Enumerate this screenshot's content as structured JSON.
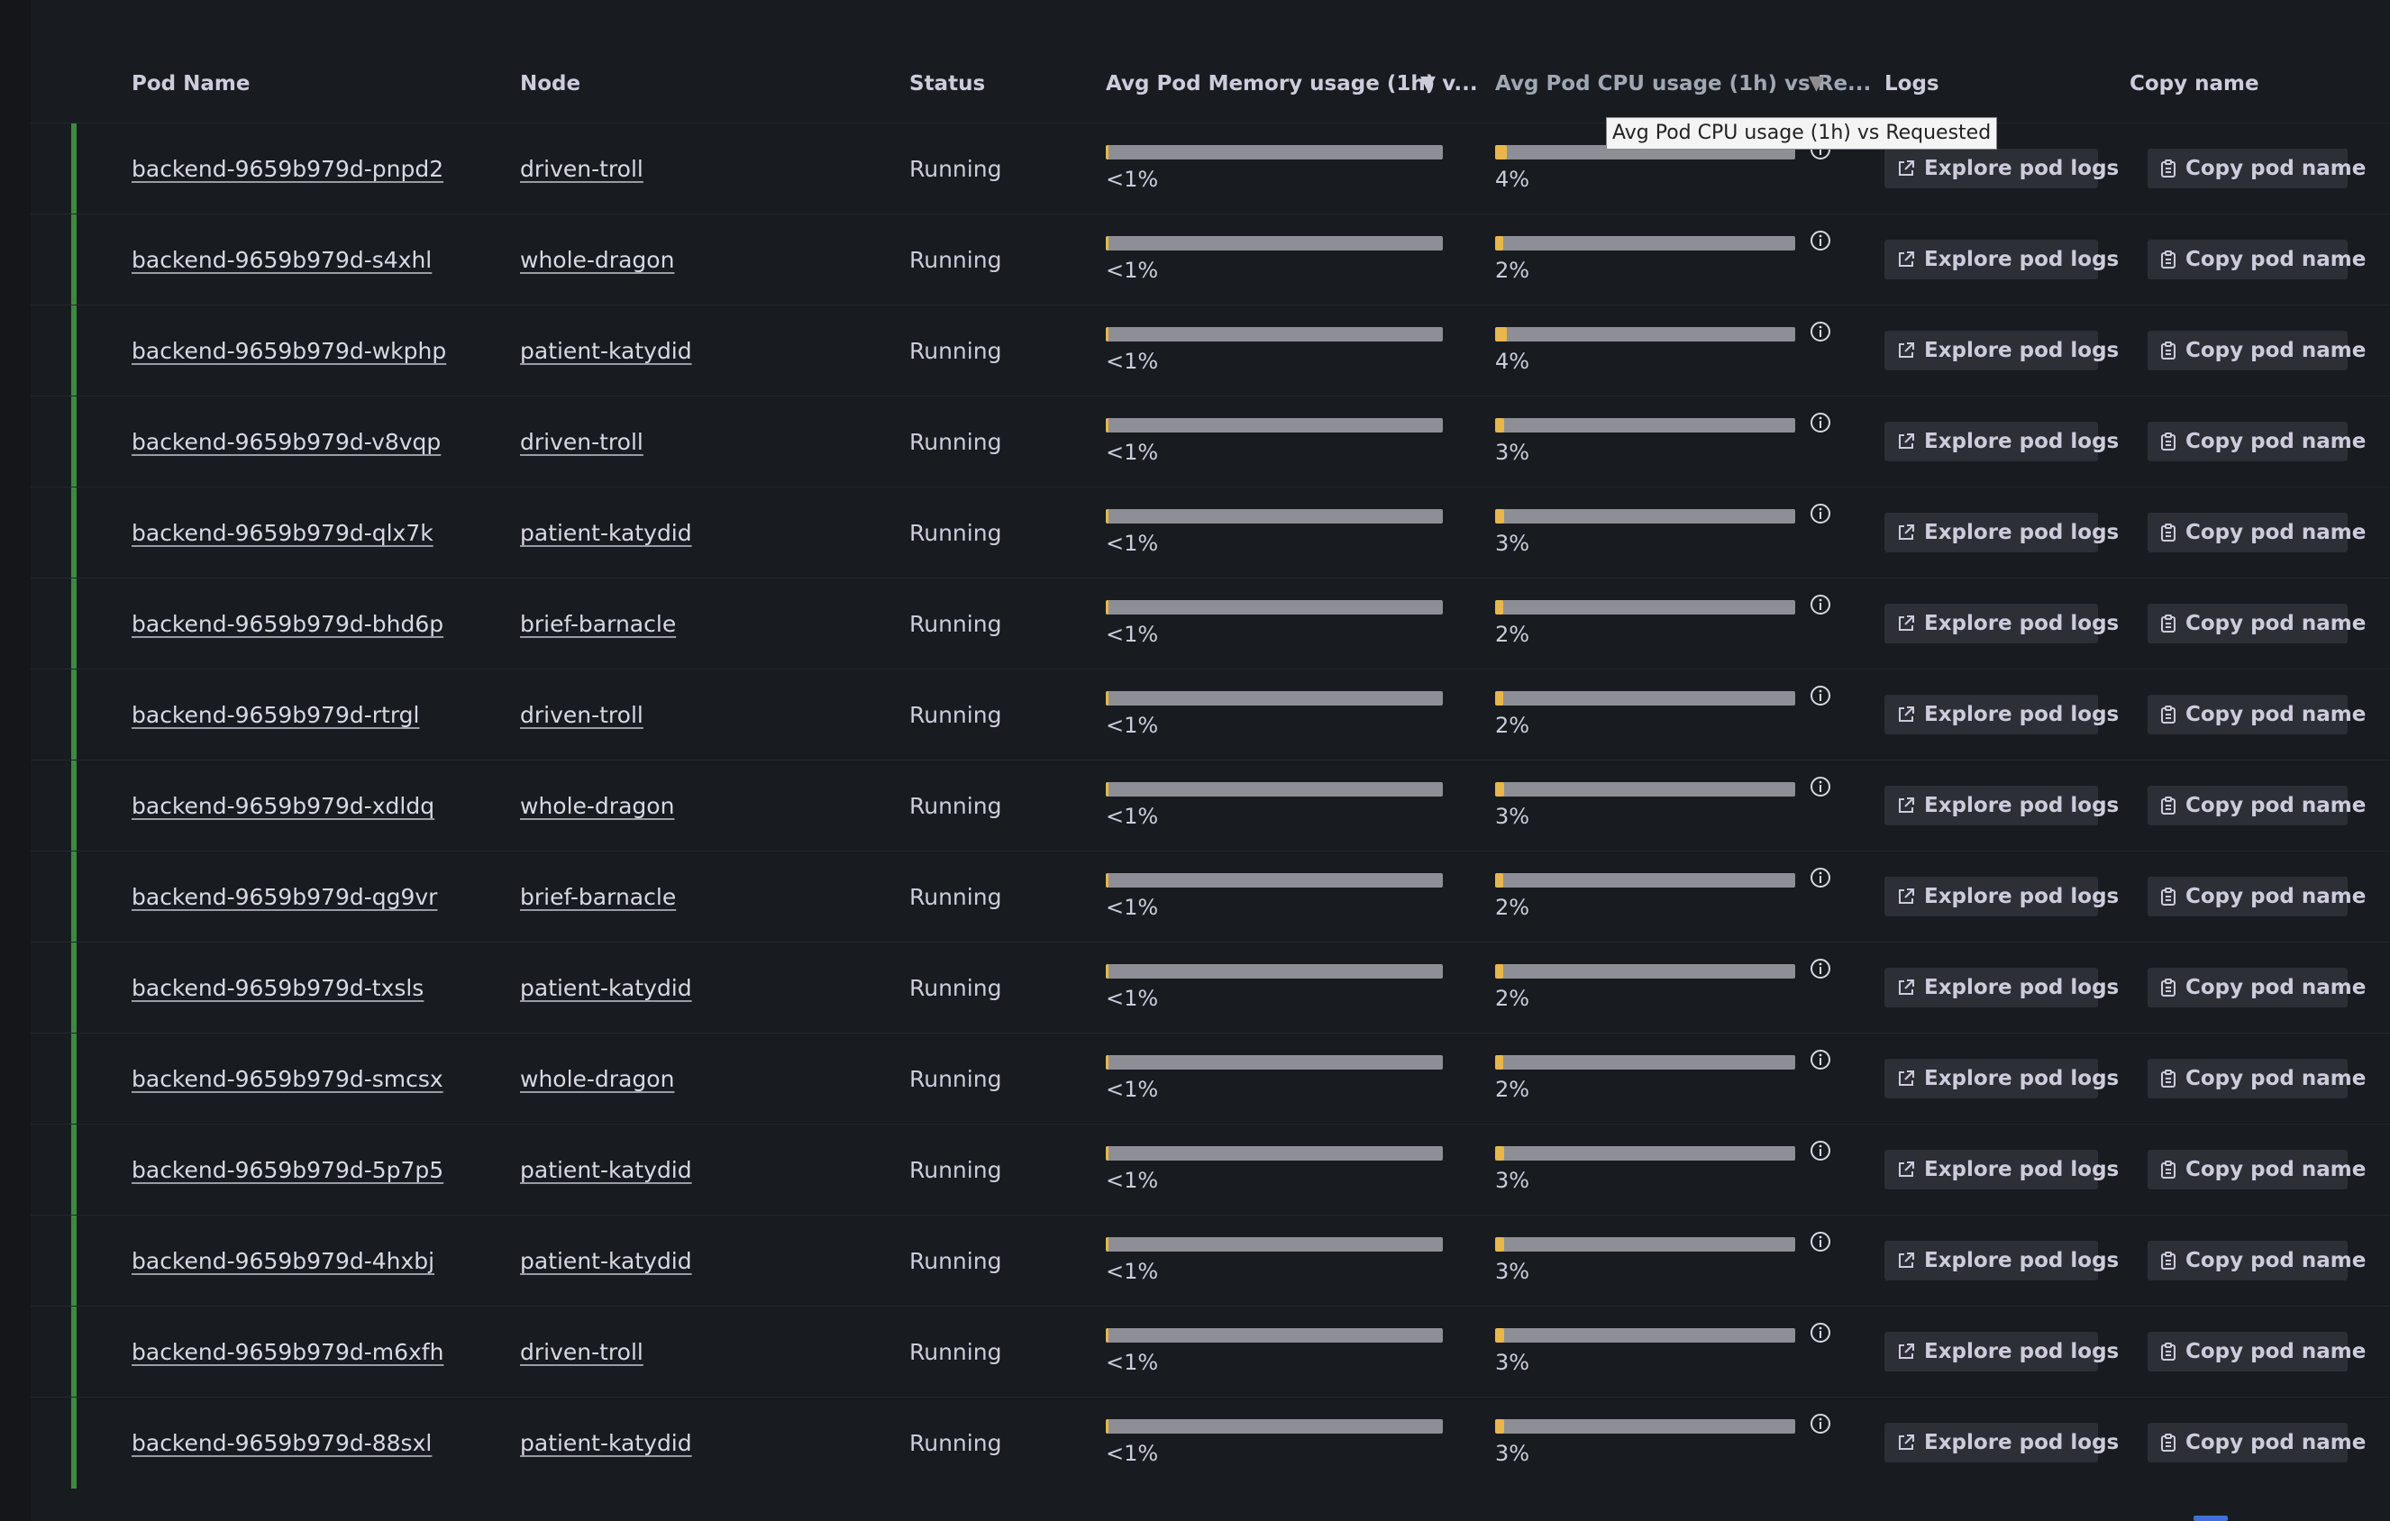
{
  "columns": {
    "pod_name": "Pod Name",
    "node": "Node",
    "status": "Status",
    "memory": "Avg Pod Memory usage (1h) v...",
    "cpu": "Avg Pod CPU usage (1h) vs Re...",
    "logs": "Logs",
    "copy": "Copy name"
  },
  "tooltip": "Avg Pod CPU usage (1h) vs Requested",
  "buttons": {
    "explore": "Explore pod logs",
    "copy": "Copy pod name"
  },
  "icons": {
    "sort": "sort-desc-icon",
    "info": "info-circle-icon",
    "external": "external-link-icon",
    "clipboard": "clipboard-icon"
  },
  "colors": {
    "background": "#181b1f",
    "row_accent": "#3c8a42",
    "cpu_fill": "#e8b64a",
    "bar_track": "#8e8f96",
    "button_bg": "#2d2f36"
  },
  "rows": [
    {
      "pod": "backend-9659b979d-pnpd2",
      "node": "driven-troll",
      "status": "Running",
      "memory_label": "<1%",
      "memory_pct": 0.5,
      "cpu_label": "4%",
      "cpu_pct": 4
    },
    {
      "pod": "backend-9659b979d-s4xhl",
      "node": "whole-dragon",
      "status": "Running",
      "memory_label": "<1%",
      "memory_pct": 0.5,
      "cpu_label": "2%",
      "cpu_pct": 2
    },
    {
      "pod": "backend-9659b979d-wkphp",
      "node": "patient-katydid",
      "status": "Running",
      "memory_label": "<1%",
      "memory_pct": 0.5,
      "cpu_label": "4%",
      "cpu_pct": 4
    },
    {
      "pod": "backend-9659b979d-v8vqp",
      "node": "driven-troll",
      "status": "Running",
      "memory_label": "<1%",
      "memory_pct": 0.5,
      "cpu_label": "3%",
      "cpu_pct": 3
    },
    {
      "pod": "backend-9659b979d-qlx7k",
      "node": "patient-katydid",
      "status": "Running",
      "memory_label": "<1%",
      "memory_pct": 0.5,
      "cpu_label": "3%",
      "cpu_pct": 3
    },
    {
      "pod": "backend-9659b979d-bhd6p",
      "node": "brief-barnacle",
      "status": "Running",
      "memory_label": "<1%",
      "memory_pct": 0.5,
      "cpu_label": "2%",
      "cpu_pct": 2
    },
    {
      "pod": "backend-9659b979d-rtrgl",
      "node": "driven-troll",
      "status": "Running",
      "memory_label": "<1%",
      "memory_pct": 0.5,
      "cpu_label": "2%",
      "cpu_pct": 2
    },
    {
      "pod": "backend-9659b979d-xdldq",
      "node": "whole-dragon",
      "status": "Running",
      "memory_label": "<1%",
      "memory_pct": 0.5,
      "cpu_label": "3%",
      "cpu_pct": 3
    },
    {
      "pod": "backend-9659b979d-qg9vr",
      "node": "brief-barnacle",
      "status": "Running",
      "memory_label": "<1%",
      "memory_pct": 0.5,
      "cpu_label": "2%",
      "cpu_pct": 2
    },
    {
      "pod": "backend-9659b979d-txsls",
      "node": "patient-katydid",
      "status": "Running",
      "memory_label": "<1%",
      "memory_pct": 0.5,
      "cpu_label": "2%",
      "cpu_pct": 2
    },
    {
      "pod": "backend-9659b979d-smcsx",
      "node": "whole-dragon",
      "status": "Running",
      "memory_label": "<1%",
      "memory_pct": 0.5,
      "cpu_label": "2%",
      "cpu_pct": 2
    },
    {
      "pod": "backend-9659b979d-5p7p5",
      "node": "patient-katydid",
      "status": "Running",
      "memory_label": "<1%",
      "memory_pct": 0.5,
      "cpu_label": "3%",
      "cpu_pct": 3
    },
    {
      "pod": "backend-9659b979d-4hxbj",
      "node": "patient-katydid",
      "status": "Running",
      "memory_label": "<1%",
      "memory_pct": 0.5,
      "cpu_label": "3%",
      "cpu_pct": 3
    },
    {
      "pod": "backend-9659b979d-m6xfh",
      "node": "driven-troll",
      "status": "Running",
      "memory_label": "<1%",
      "memory_pct": 0.5,
      "cpu_label": "3%",
      "cpu_pct": 3
    },
    {
      "pod": "backend-9659b979d-88sxl",
      "node": "patient-katydid",
      "status": "Running",
      "memory_label": "<1%",
      "memory_pct": 0.5,
      "cpu_label": "3%",
      "cpu_pct": 3
    }
  ]
}
